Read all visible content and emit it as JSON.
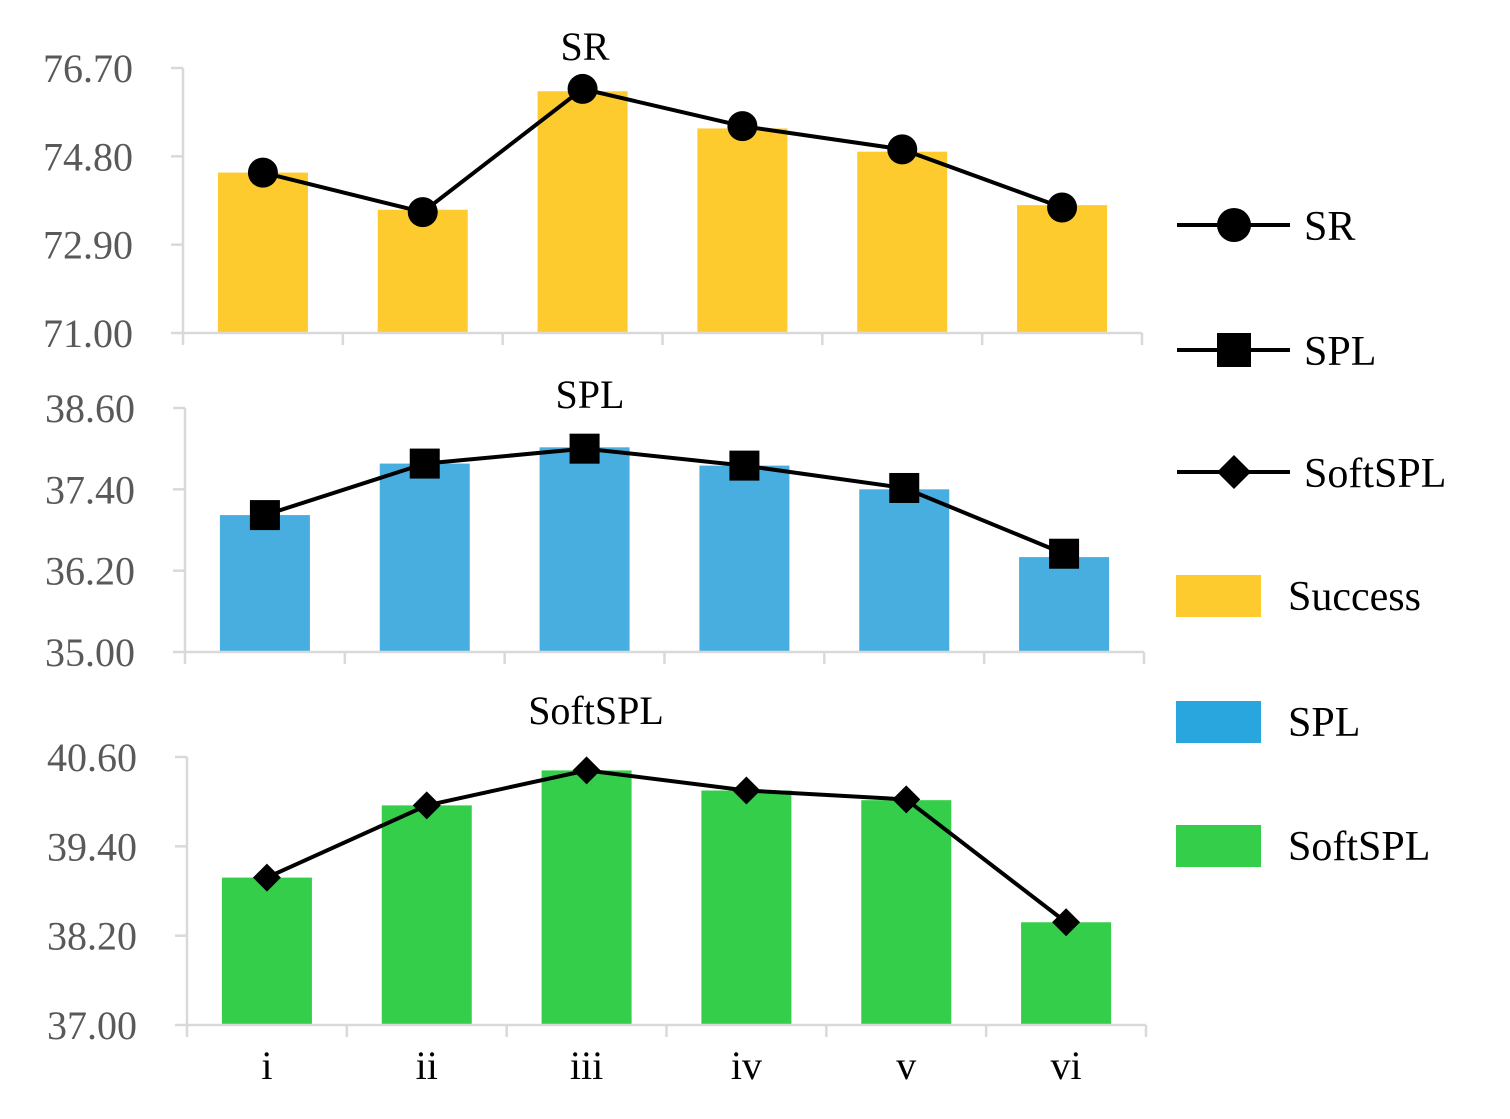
{
  "colors": {
    "success_bar": "#FDCB2D",
    "spl_bar": "#47AEDF",
    "softspl_bar": "#34CE4A",
    "line": "#000000",
    "tick_text": "#595959",
    "axis": "#D9D9D9"
  },
  "legend": [
    {
      "label": "SR",
      "kind": "line",
      "marker": "circle"
    },
    {
      "label": "SPL",
      "kind": "line",
      "marker": "square"
    },
    {
      "label": "SoftSPL",
      "kind": "line",
      "marker": "diamond"
    },
    {
      "label": "Success",
      "kind": "bar",
      "color": "#FDCB2D"
    },
    {
      "label": "SPL",
      "kind": "bar",
      "color": "#2AA6DF"
    },
    {
      "label": "SoftSPL",
      "kind": "bar",
      "color": "#34CE4A"
    }
  ],
  "chart_data": [
    {
      "type": "bar",
      "title": "SR",
      "categories": [
        "i",
        "ii",
        "iii",
        "iv",
        "v",
        "vi"
      ],
      "ylim": [
        71.0,
        76.7
      ],
      "yticks": [
        "71.00",
        "72.90",
        "74.80",
        "76.70"
      ],
      "series": [
        {
          "name": "Success",
          "kind": "bar",
          "color": "#FDCB2D",
          "values": [
            74.45,
            73.65,
            76.2,
            75.4,
            74.9,
            73.75
          ]
        },
        {
          "name": "SR",
          "kind": "line",
          "marker": "circle",
          "values": [
            74.45,
            73.6,
            76.25,
            75.45,
            74.95,
            73.7
          ]
        }
      ]
    },
    {
      "type": "bar",
      "title": "SPL",
      "categories": [
        "i",
        "ii",
        "iii",
        "iv",
        "v",
        "vi"
      ],
      "ylim": [
        35.0,
        38.6
      ],
      "yticks": [
        "35.00",
        "36.20",
        "37.40",
        "38.60"
      ],
      "series": [
        {
          "name": "SPL",
          "kind": "bar",
          "color": "#47AEDF",
          "values": [
            37.02,
            37.78,
            38.02,
            37.75,
            37.4,
            36.4
          ]
        },
        {
          "name": "SPL",
          "kind": "line",
          "marker": "square",
          "values": [
            37.02,
            37.78,
            38.0,
            37.75,
            37.42,
            36.45
          ]
        }
      ]
    },
    {
      "type": "bar",
      "title": "SoftSPL",
      "categories": [
        "i",
        "ii",
        "iii",
        "iv",
        "v",
        "vi"
      ],
      "ylim": [
        37.0,
        40.6
      ],
      "yticks": [
        "37.00",
        "38.20",
        "39.40",
        "40.60"
      ],
      "xticks": [
        "i",
        "ii",
        "iii",
        "iv",
        "v",
        "vi"
      ],
      "series": [
        {
          "name": "SoftSPL",
          "kind": "bar",
          "color": "#34CE4A",
          "values": [
            38.98,
            39.95,
            40.42,
            40.15,
            40.02,
            38.38
          ]
        },
        {
          "name": "SoftSPL",
          "kind": "line",
          "marker": "diamond",
          "values": [
            38.98,
            39.95,
            40.42,
            40.15,
            40.03,
            38.38
          ]
        }
      ]
    }
  ]
}
